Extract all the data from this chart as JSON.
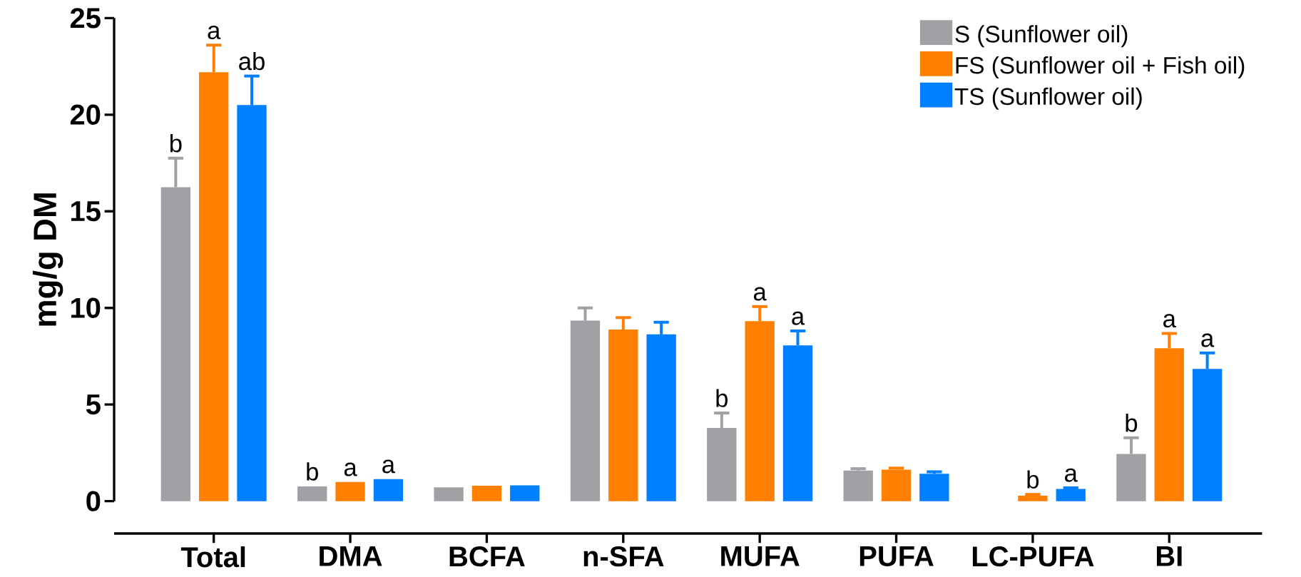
{
  "chart_data": {
    "type": "bar",
    "ylabel": "mg/g DM",
    "categories": [
      "Total",
      "DMA",
      "BCFA",
      "n-SFA",
      "MUFA",
      "PUFA",
      "LC-PUFA",
      "BI"
    ],
    "series": [
      {
        "name": "S (Sunflower oil)",
        "color": "#a0a0a5",
        "values": [
          16.25,
          0.76,
          0.72,
          9.34,
          3.79,
          1.58,
          null,
          2.44
        ],
        "errors": [
          1.5,
          null,
          null,
          0.66,
          0.77,
          0.1,
          null,
          0.84
        ],
        "value_labels": [
          "b",
          "b",
          null,
          null,
          "b",
          null,
          null,
          "b"
        ]
      },
      {
        "name": "FS (Sunflower oil + Fish oil)",
        "color": "#ff8000",
        "values": [
          22.2,
          0.99,
          0.8,
          8.88,
          9.32,
          1.63,
          0.28,
          7.91
        ],
        "errors": [
          1.4,
          null,
          null,
          0.62,
          0.75,
          0.08,
          0.07,
          0.77
        ],
        "value_labels": [
          "a",
          "a",
          null,
          null,
          "a",
          null,
          "b",
          "a"
        ]
      },
      {
        "name": "TS (Sunflower oil)",
        "color": "#0080ff",
        "values": [
          20.5,
          1.14,
          0.82,
          8.63,
          8.06,
          1.42,
          0.63,
          6.84
        ],
        "errors": [
          1.5,
          null,
          null,
          0.63,
          0.75,
          0.1,
          0.06,
          0.83
        ],
        "value_labels": [
          "ab",
          "a",
          null,
          null,
          "a",
          null,
          "a",
          "a"
        ]
      }
    ],
    "ylim": [
      0,
      25
    ],
    "yticks": [
      0,
      5,
      10,
      15,
      20,
      25
    ],
    "legend": "top right"
  }
}
